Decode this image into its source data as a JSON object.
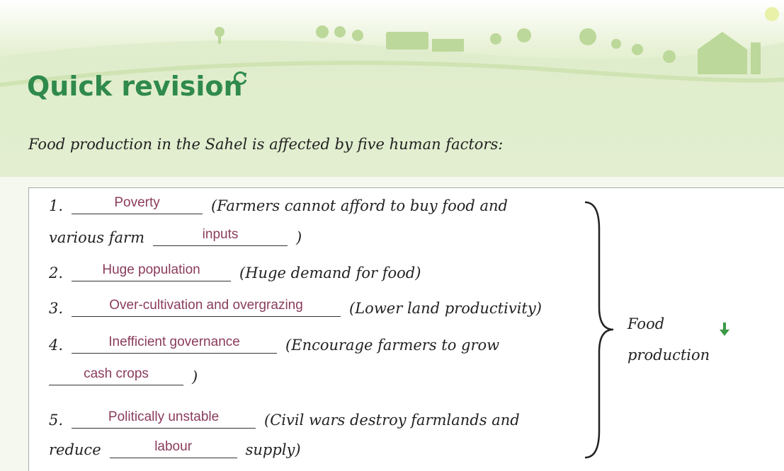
{
  "title": "Quick revision",
  "intro": "Food production in the Sahel is affected by five human factors:",
  "items": [
    {
      "lines": [
        [
          {
            "t": "1."
          },
          {
            "a": "Poverty"
          },
          {
            "t": "(Farmers cannot afford to buy food and"
          }
        ],
        [
          {
            "t": "various farm"
          },
          {
            "a": "inputs"
          },
          {
            "t": ")"
          }
        ]
      ]
    },
    {
      "lines": [
        [
          {
            "t": "2."
          },
          {
            "a": "Huge population"
          },
          {
            "t": "(Huge demand for food)"
          }
        ]
      ]
    },
    {
      "lines": [
        [
          {
            "t": "3."
          },
          {
            "a": "Over-cultivation and overgrazing"
          },
          {
            "t": "(Lower land productivity)"
          }
        ]
      ]
    },
    {
      "lines": [
        [
          {
            "t": "4."
          },
          {
            "a": "Inefficient governance"
          },
          {
            "t": "(Encourage farmers to grow"
          }
        ],
        [
          {
            "a": "cash crops"
          },
          {
            "t": ")"
          }
        ]
      ]
    },
    {
      "lines": [
        [
          {
            "t": "5."
          },
          {
            "a": "Politically unstable"
          },
          {
            "t": "(Civil wars destroy farmlands and"
          }
        ],
        [
          {
            "t": "reduce"
          },
          {
            "a": "labour"
          },
          {
            "t": "supply)"
          }
        ]
      ]
    }
  ],
  "result": [
    "Food",
    "production"
  ]
}
